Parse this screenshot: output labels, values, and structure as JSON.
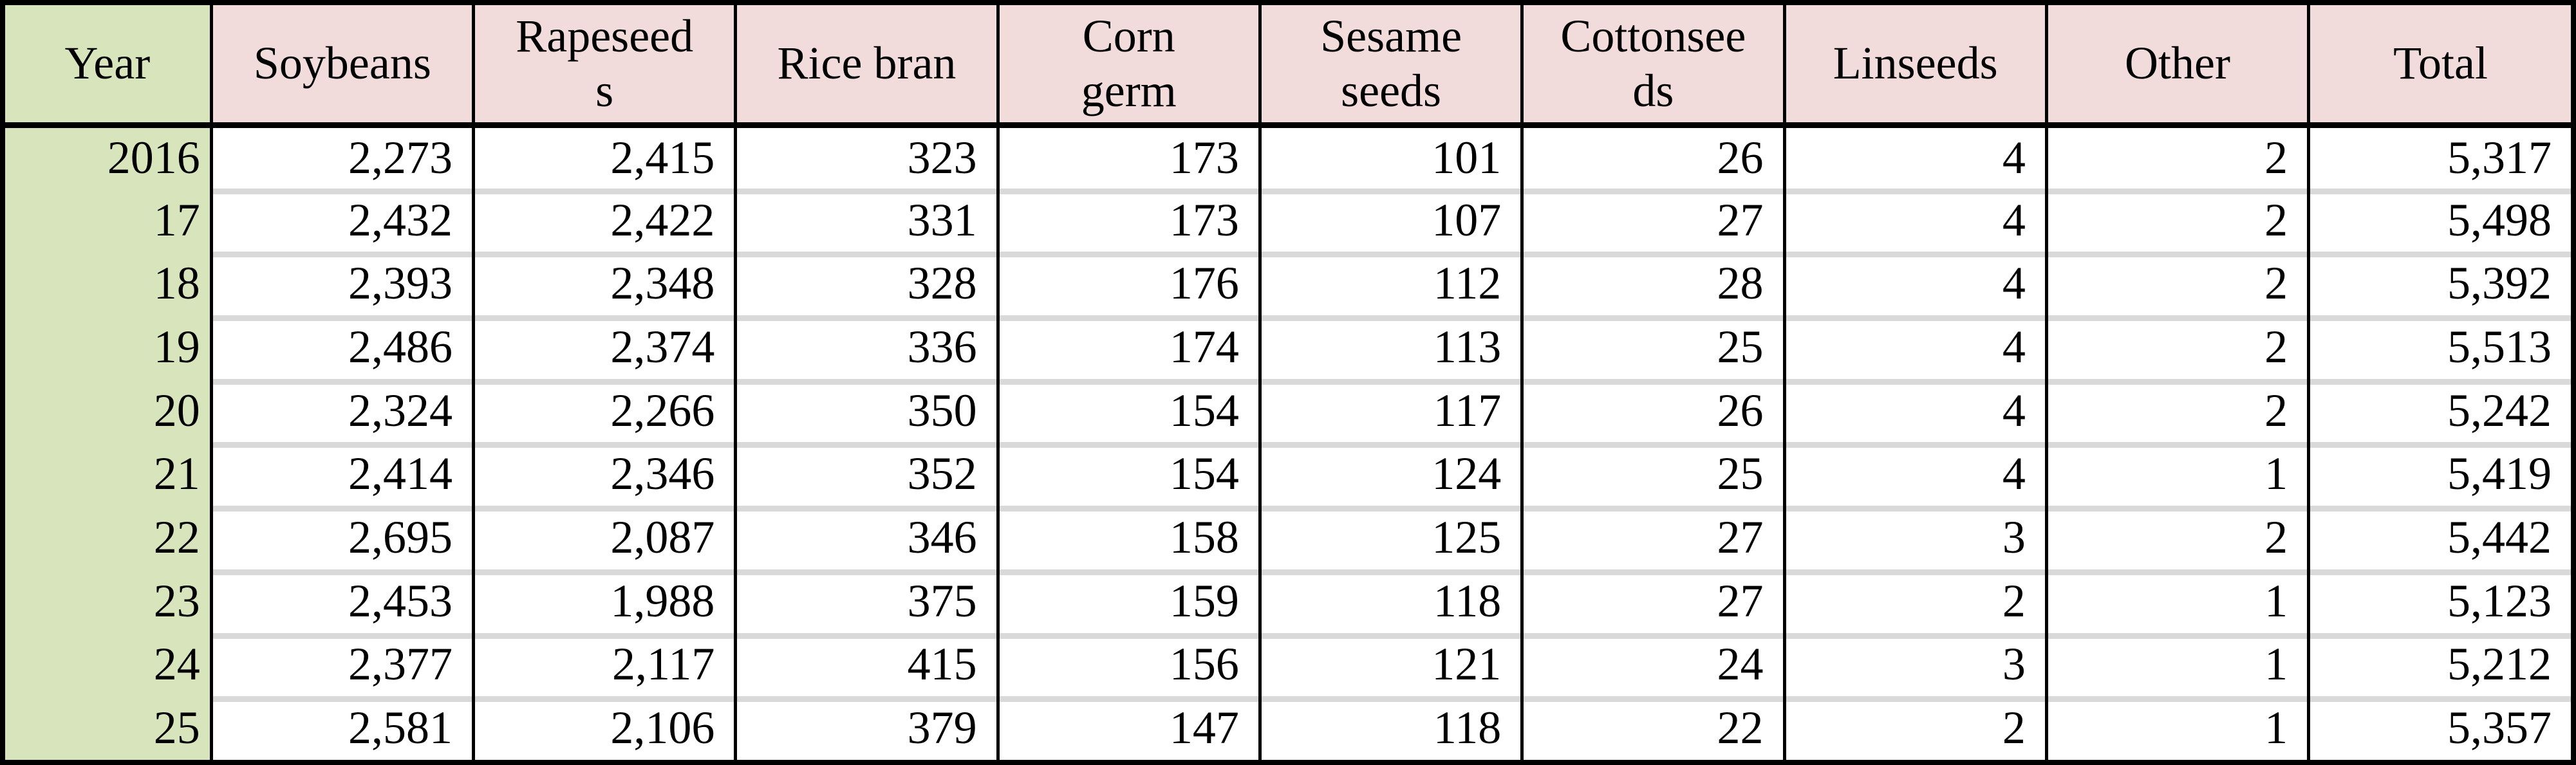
{
  "table": {
    "headers": [
      "Year",
      "Soybeans",
      "Rapeseed\ns",
      "Rice bran",
      "Corn\ngerm",
      "Sesame\nseeds",
      "Cottonsee\nds",
      "Linseeds",
      "Other",
      "Total"
    ],
    "rows": [
      {
        "year": "2016",
        "values": [
          "2,273",
          "2,415",
          "323",
          "173",
          "101",
          "26",
          "4",
          "2",
          "5,317"
        ]
      },
      {
        "year": "17",
        "values": [
          "2,432",
          "2,422",
          "331",
          "173",
          "107",
          "27",
          "4",
          "2",
          "5,498"
        ]
      },
      {
        "year": "18",
        "values": [
          "2,393",
          "2,348",
          "328",
          "176",
          "112",
          "28",
          "4",
          "2",
          "5,392"
        ]
      },
      {
        "year": "19",
        "values": [
          "2,486",
          "2,374",
          "336",
          "174",
          "113",
          "25",
          "4",
          "2",
          "5,513"
        ]
      },
      {
        "year": "20",
        "values": [
          "2,324",
          "2,266",
          "350",
          "154",
          "117",
          "26",
          "4",
          "2",
          "5,242"
        ]
      },
      {
        "year": "21",
        "values": [
          "2,414",
          "2,346",
          "352",
          "154",
          "124",
          "25",
          "4",
          "1",
          "5,419"
        ]
      },
      {
        "year": "22",
        "values": [
          "2,695",
          "2,087",
          "346",
          "158",
          "125",
          "27",
          "3",
          "2",
          "5,442"
        ]
      },
      {
        "year": "23",
        "values": [
          "2,453",
          "1,988",
          "375",
          "159",
          "118",
          "27",
          "2",
          "1",
          "5,123"
        ]
      },
      {
        "year": "24",
        "values": [
          "2,377",
          "2,117",
          "415",
          "156",
          "121",
          "24",
          "3",
          "1",
          "5,212"
        ]
      },
      {
        "year": "25",
        "values": [
          "2,581",
          "2,106",
          "379",
          "147",
          "118",
          "22",
          "2",
          "1",
          "5,357"
        ]
      }
    ],
    "colors": {
      "year_column_bg": "#d8e4bc",
      "header_bg": "#f2dcdb",
      "row_separator": "#d9d9d9",
      "grid_border": "#000000"
    }
  },
  "chart_data": {
    "type": "table",
    "title": "",
    "columns": [
      "Year",
      "Soybeans",
      "Rapeseeds",
      "Rice bran",
      "Corn germ",
      "Sesame seeds",
      "Cottonseeds",
      "Linseeds",
      "Other",
      "Total"
    ],
    "rows": [
      [
        "2016",
        2273,
        2415,
        323,
        173,
        101,
        26,
        4,
        2,
        5317
      ],
      [
        "17",
        2432,
        2422,
        331,
        173,
        107,
        27,
        4,
        2,
        5498
      ],
      [
        "18",
        2393,
        2348,
        328,
        176,
        112,
        28,
        4,
        2,
        5392
      ],
      [
        "19",
        2486,
        2374,
        336,
        174,
        113,
        25,
        4,
        2,
        5513
      ],
      [
        "20",
        2324,
        2266,
        350,
        154,
        117,
        26,
        4,
        2,
        5242
      ],
      [
        "21",
        2414,
        2346,
        352,
        154,
        124,
        25,
        4,
        1,
        5419
      ],
      [
        "22",
        2695,
        2087,
        346,
        158,
        125,
        27,
        3,
        2,
        5442
      ],
      [
        "23",
        2453,
        1988,
        375,
        159,
        118,
        27,
        2,
        1,
        5123
      ],
      [
        "24",
        2377,
        2117,
        415,
        156,
        121,
        24,
        3,
        1,
        5212
      ],
      [
        "25",
        2581,
        2106,
        379,
        147,
        118,
        22,
        2,
        1,
        5357
      ]
    ]
  }
}
